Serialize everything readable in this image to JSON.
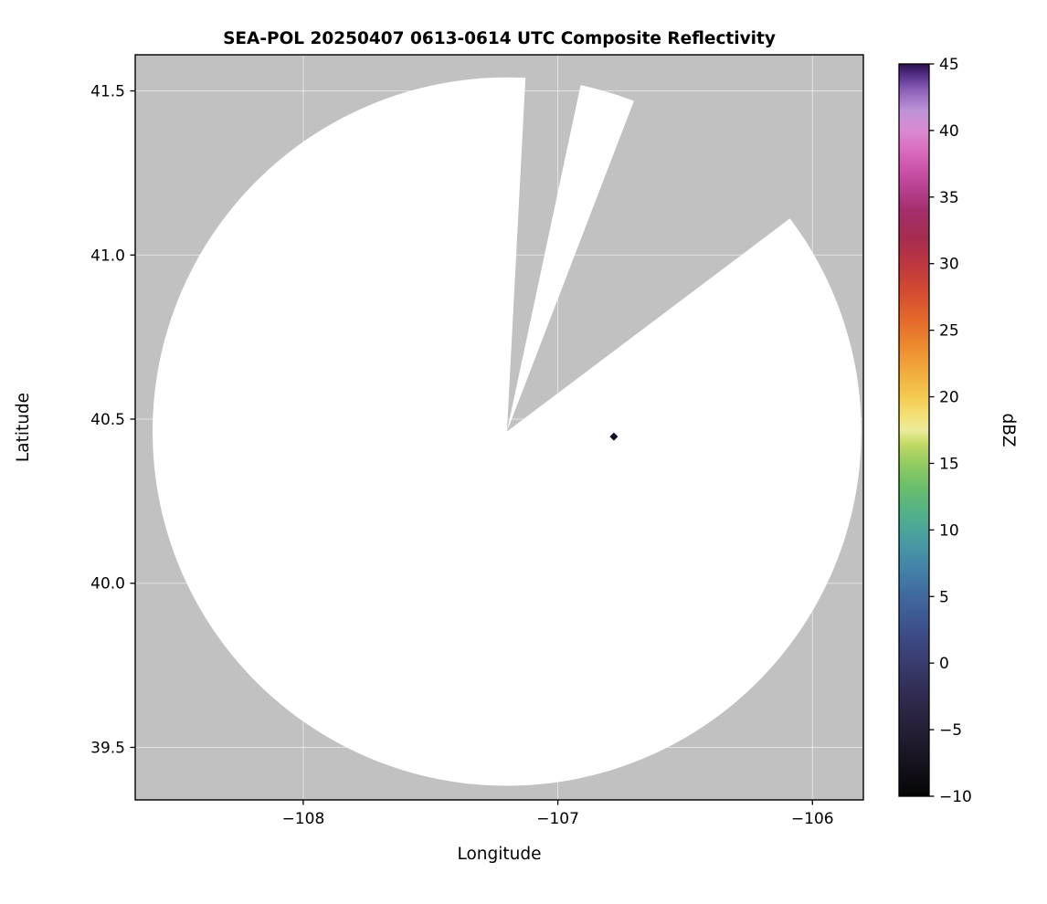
{
  "chart_data": {
    "type": "heatmap",
    "subtype": "radar-ppi-composite-reflectivity-map",
    "title": "SEA-POL 20250407 0613-0614 UTC Composite Reflectivity",
    "xlabel": "Longitude",
    "ylabel": "Latitude",
    "xlim": [
      -108.66,
      -105.8
    ],
    "ylim": [
      39.34,
      41.61
    ],
    "grid": true,
    "grid_color": "#ffffff",
    "outside_coverage_color": "#c1c1c1",
    "xticks": [
      {
        "value": -108,
        "label": "−108"
      },
      {
        "value": -107,
        "label": "−107"
      },
      {
        "value": -106,
        "label": "−106"
      }
    ],
    "yticks": [
      {
        "value": 39.5,
        "label": "39.5"
      },
      {
        "value": 40.0,
        "label": "40.0"
      },
      {
        "value": 40.5,
        "label": "40.5"
      },
      {
        "value": 41.0,
        "label": "41.0"
      },
      {
        "value": 41.5,
        "label": "41.5"
      }
    ],
    "coverage": {
      "description": "radar scan coverage disk, no-echo areas shown white",
      "fill_color": "#ffffff",
      "center_lon": -107.2,
      "center_lat": 40.462,
      "radius_deg_lat": 1.079,
      "missing_sectors_deg_from_north": [
        {
          "from_deg": 3,
          "to_deg": 12
        },
        {
          "from_deg": 21,
          "to_deg": 53
        }
      ]
    },
    "echo_points": [
      {
        "lon": -106.78,
        "lat": 40.447,
        "marker": "diamond",
        "color": "#10101e",
        "approx_dbz": -10
      }
    ],
    "colorbar": {
      "label": "dBZ",
      "vmin": -10,
      "vmax": 45,
      "orientation": "vertical",
      "position": "right",
      "ticks": [
        {
          "value": 45,
          "label": "45"
        },
        {
          "value": 40,
          "label": "40"
        },
        {
          "value": 35,
          "label": "35"
        },
        {
          "value": 30,
          "label": "30"
        },
        {
          "value": 25,
          "label": "25"
        },
        {
          "value": 20,
          "label": "20"
        },
        {
          "value": 15,
          "label": "15"
        },
        {
          "value": 10,
          "label": "10"
        },
        {
          "value": 5,
          "label": "5"
        },
        {
          "value": 0,
          "label": "0"
        },
        {
          "value": -5,
          "label": "−5"
        },
        {
          "value": -10,
          "label": "−10"
        }
      ],
      "stops": [
        {
          "value": -10,
          "color": "#050505"
        },
        {
          "value": -8,
          "color": "#131019"
        },
        {
          "value": -6,
          "color": "#1f1a2b"
        },
        {
          "value": -4,
          "color": "#2a2440"
        },
        {
          "value": -2,
          "color": "#322e55"
        },
        {
          "value": 0,
          "color": "#383c6e"
        },
        {
          "value": 2,
          "color": "#3c4b86"
        },
        {
          "value": 5,
          "color": "#40689f"
        },
        {
          "value": 7,
          "color": "#4381a8"
        },
        {
          "value": 9,
          "color": "#479aa4"
        },
        {
          "value": 11,
          "color": "#50af8d"
        },
        {
          "value": 13,
          "color": "#66bd6e"
        },
        {
          "value": 15,
          "color": "#92cb60"
        },
        {
          "value": 16.5,
          "color": "#c4da67"
        },
        {
          "value": 17.5,
          "color": "#eceb9a"
        },
        {
          "value": 18.5,
          "color": "#f3e27a"
        },
        {
          "value": 20,
          "color": "#f4c94f"
        },
        {
          "value": 22,
          "color": "#f1a93c"
        },
        {
          "value": 24,
          "color": "#ec872f"
        },
        {
          "value": 26,
          "color": "#e3662b"
        },
        {
          "value": 28,
          "color": "#d34a31"
        },
        {
          "value": 30,
          "color": "#bc3740"
        },
        {
          "value": 32,
          "color": "#a52c50"
        },
        {
          "value": 34,
          "color": "#a42f6c"
        },
        {
          "value": 35.5,
          "color": "#b63f8d"
        },
        {
          "value": 37,
          "color": "#ca52a8"
        },
        {
          "value": 38.5,
          "color": "#da6cbe"
        },
        {
          "value": 40,
          "color": "#d98ad1"
        },
        {
          "value": 41.5,
          "color": "#bd93d8"
        },
        {
          "value": 43,
          "color": "#8e62b9"
        },
        {
          "value": 44,
          "color": "#5c3691"
        },
        {
          "value": 45,
          "color": "#2a1150"
        }
      ]
    }
  }
}
